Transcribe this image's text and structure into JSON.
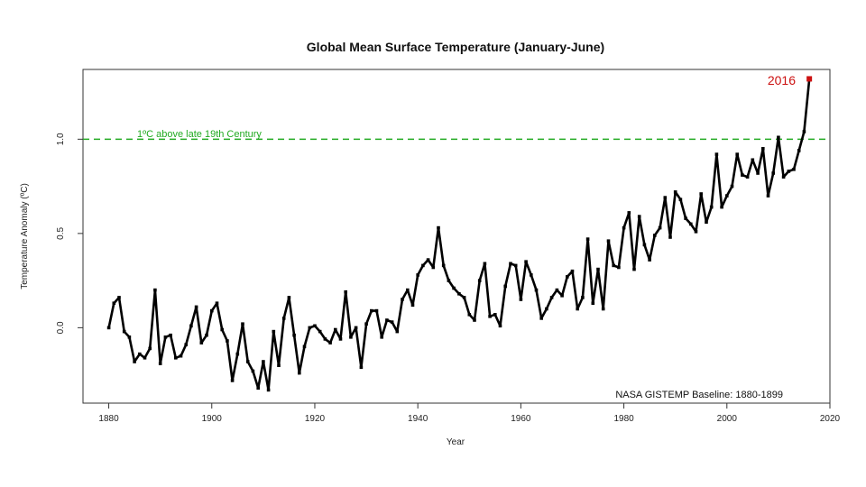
{
  "chart_data": {
    "type": "line",
    "title": "Global Mean Surface Temperature (January-June)",
    "xlabel": "Year",
    "ylabel": "Temperature Anomaly (ºC)",
    "xlim": [
      1875,
      2020
    ],
    "ylim": [
      -0.4,
      1.37
    ],
    "xticks": [
      1880,
      1900,
      1920,
      1940,
      1960,
      1980,
      2000,
      2020
    ],
    "yticks": [
      0.0,
      0.5,
      1.0
    ],
    "ytick_labels": [
      "0.0",
      "0.5",
      "1.0"
    ],
    "grid": false,
    "reference_line": {
      "y": 1.0,
      "label": "1ºC above late 19th Century",
      "color": "#22aa22"
    },
    "baseline_note": "NASA GISTEMP Baseline: 1880-1899",
    "highlight": {
      "x": 2016,
      "y": 1.32,
      "label": "2016",
      "color": "#cc1111"
    },
    "series": [
      {
        "color": "#000000",
        "x": [
          1880,
          1881,
          1882,
          1883,
          1884,
          1885,
          1886,
          1887,
          1888,
          1889,
          1890,
          1891,
          1892,
          1893,
          1894,
          1895,
          1896,
          1897,
          1898,
          1899,
          1900,
          1901,
          1902,
          1903,
          1904,
          1905,
          1906,
          1907,
          1908,
          1909,
          1910,
          1911,
          1912,
          1913,
          1914,
          1915,
          1916,
          1917,
          1918,
          1919,
          1920,
          1921,
          1922,
          1923,
          1924,
          1925,
          1926,
          1927,
          1928,
          1929,
          1930,
          1931,
          1932,
          1933,
          1934,
          1935,
          1936,
          1937,
          1938,
          1939,
          1940,
          1941,
          1942,
          1943,
          1944,
          1945,
          1946,
          1947,
          1948,
          1949,
          1950,
          1951,
          1952,
          1953,
          1954,
          1955,
          1956,
          1957,
          1958,
          1959,
          1960,
          1961,
          1962,
          1963,
          1964,
          1965,
          1966,
          1967,
          1968,
          1969,
          1970,
          1971,
          1972,
          1973,
          1974,
          1975,
          1976,
          1977,
          1978,
          1979,
          1980,
          1981,
          1982,
          1983,
          1984,
          1985,
          1986,
          1987,
          1988,
          1989,
          1990,
          1991,
          1992,
          1993,
          1994,
          1995,
          1996,
          1997,
          1998,
          1999,
          2000,
          2001,
          2002,
          2003,
          2004,
          2005,
          2006,
          2007,
          2008,
          2009,
          2010,
          2011,
          2012,
          2013,
          2014,
          2015,
          2016
        ],
        "y": [
          0.0,
          0.13,
          0.16,
          -0.02,
          -0.05,
          -0.18,
          -0.14,
          -0.16,
          -0.11,
          0.2,
          -0.19,
          -0.05,
          -0.04,
          -0.16,
          -0.15,
          -0.09,
          0.01,
          0.11,
          -0.08,
          -0.04,
          0.09,
          0.13,
          -0.01,
          -0.07,
          -0.28,
          -0.14,
          0.02,
          -0.18,
          -0.23,
          -0.32,
          -0.18,
          -0.33,
          -0.02,
          -0.2,
          0.05,
          0.16,
          -0.04,
          -0.24,
          -0.1,
          0.0,
          0.01,
          -0.02,
          -0.06,
          -0.08,
          -0.01,
          -0.06,
          0.19,
          -0.05,
          0.0,
          -0.21,
          0.02,
          0.09,
          0.09,
          -0.05,
          0.04,
          0.03,
          -0.02,
          0.15,
          0.2,
          0.12,
          0.28,
          0.33,
          0.36,
          0.32,
          0.53,
          0.33,
          0.25,
          0.21,
          0.18,
          0.16,
          0.07,
          0.04,
          0.25,
          0.34,
          0.06,
          0.07,
          0.01,
          0.22,
          0.34,
          0.33,
          0.15,
          0.35,
          0.28,
          0.2,
          0.05,
          0.1,
          0.16,
          0.2,
          0.17,
          0.27,
          0.3,
          0.1,
          0.16,
          0.47,
          0.13,
          0.31,
          0.1,
          0.46,
          0.33,
          0.32,
          0.53,
          0.61,
          0.31,
          0.59,
          0.44,
          0.36,
          0.49,
          0.53,
          0.69,
          0.48,
          0.72,
          0.68,
          0.58,
          0.55,
          0.51,
          0.71,
          0.56,
          0.64,
          0.92,
          0.64,
          0.7,
          0.75,
          0.92,
          0.81,
          0.8,
          0.89,
          0.82,
          0.95,
          0.7,
          0.82,
          1.01,
          0.8,
          0.83,
          0.84,
          0.94,
          1.04,
          1.32
        ]
      }
    ]
  }
}
